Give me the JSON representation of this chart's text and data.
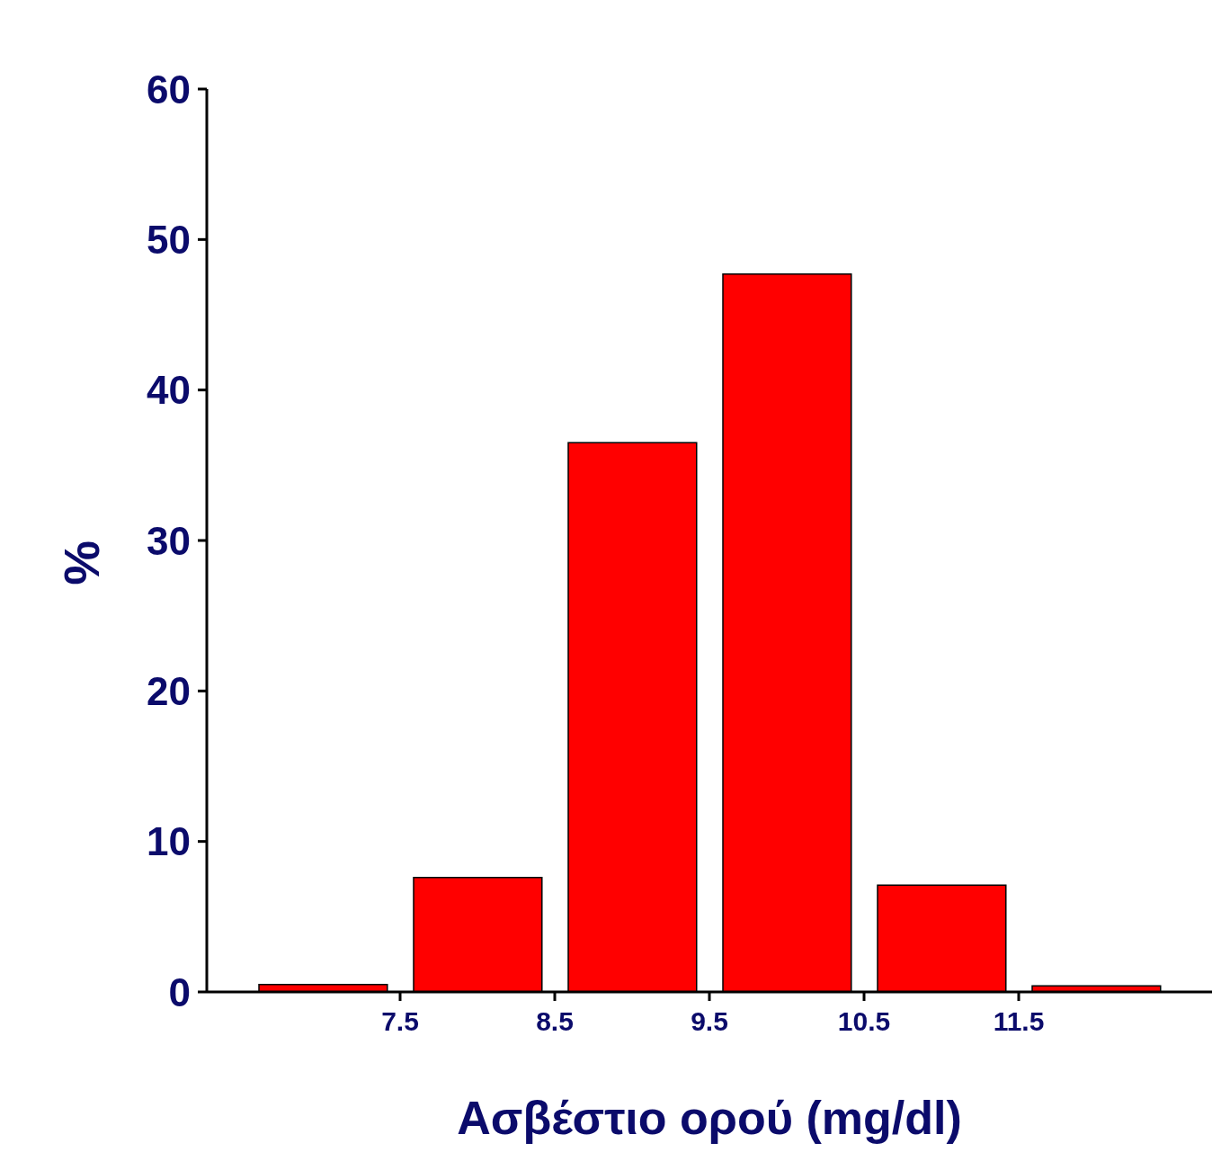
{
  "chart_data": {
    "type": "histogram",
    "xlabel": "Ασβέστιο ορού (mg/dl)",
    "ylabel": "%",
    "bins": [
      6.5,
      7.5,
      8.5,
      9.5,
      10.5,
      11.5,
      12.5
    ],
    "values": [
      0.5,
      7.6,
      36.5,
      47.7,
      7.1,
      0.4
    ],
    "color": "#ff0000",
    "xlim": [
      6.25,
      12.75
    ],
    "xticks": [
      7.5,
      8.5,
      9.5,
      10.5,
      11.5
    ],
    "ylim": [
      0,
      60
    ],
    "yticks": [
      0,
      10,
      20,
      30,
      40,
      50,
      60
    ],
    "grid": false
  }
}
